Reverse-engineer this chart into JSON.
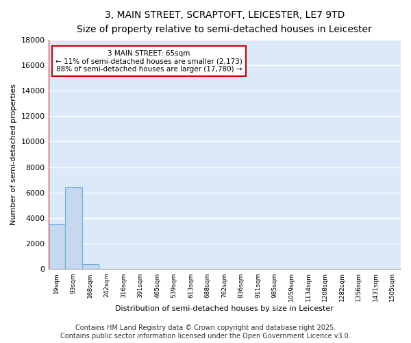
{
  "title": "3, MAIN STREET, SCRAPTOFT, LEICESTER, LE7 9TD",
  "subtitle": "Size of property relative to semi-detached houses in Leicester",
  "xlabel": "Distribution of semi-detached houses by size in Leicester",
  "ylabel": "Number of semi-detached properties",
  "bin_labels": [
    "19sqm",
    "93sqm",
    "168sqm",
    "242sqm",
    "316sqm",
    "391sqm",
    "465sqm",
    "539sqm",
    "613sqm",
    "688sqm",
    "762sqm",
    "836sqm",
    "911sqm",
    "985sqm",
    "1059sqm",
    "1134sqm",
    "1208sqm",
    "1282sqm",
    "1356sqm",
    "1431sqm",
    "1505sqm"
  ],
  "bar_heights": [
    3500,
    6400,
    400,
    0,
    0,
    0,
    0,
    0,
    0,
    0,
    0,
    0,
    0,
    0,
    0,
    0,
    0,
    0,
    0,
    0,
    0
  ],
  "bar_color": "#c5d8f0",
  "bar_edgecolor": "#6baed6",
  "bg_color": "#dce9f8",
  "grid_color": "#ffffff",
  "fig_bg_color": "#ffffff",
  "ylim": [
    0,
    18000
  ],
  "yticks": [
    0,
    2000,
    4000,
    6000,
    8000,
    10000,
    12000,
    14000,
    16000,
    18000
  ],
  "red_line_x": -0.5,
  "red_line_color": "#cc0000",
  "annotation_title": "3 MAIN STREET: 65sqm",
  "annotation_line1": "← 11% of semi-detached houses are smaller (2,173)",
  "annotation_line2": "88% of semi-detached houses are larger (17,780) →",
  "annotation_box_color": "#cc0000",
  "footer_line1": "Contains HM Land Registry data © Crown copyright and database right 2025.",
  "footer_line2": "Contains public sector information licensed under the Open Government Licence v3.0.",
  "title_fontsize": 10,
  "subtitle_fontsize": 9,
  "footer_fontsize": 7
}
